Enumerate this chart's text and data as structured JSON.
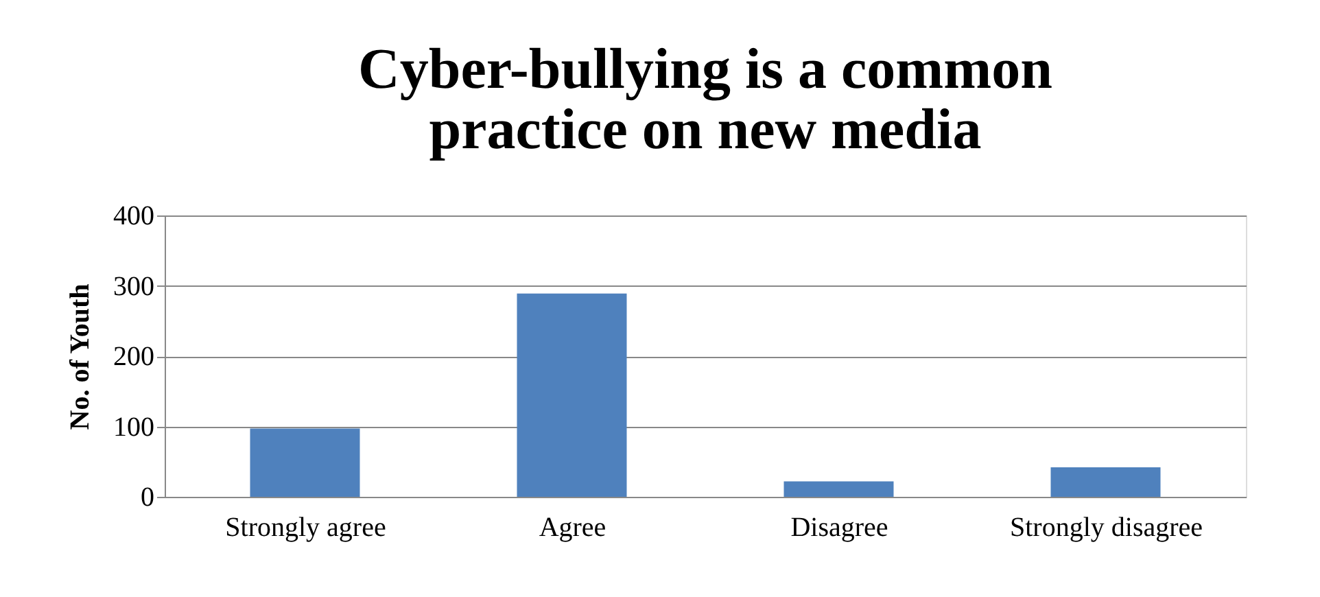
{
  "chart_data": {
    "type": "bar",
    "title": "Cyber-bullying is a common practice on new media",
    "categories": [
      "Strongly agree",
      "Agree",
      "Disagree",
      "Strongly disagree"
    ],
    "values": [
      97,
      289,
      22,
      42
    ],
    "color": "#4f81bd",
    "ylabel": "No. of Youth",
    "ylim": [
      0,
      400
    ],
    "yticks": [
      0,
      100,
      200,
      300,
      400
    ],
    "grid": "y"
  }
}
